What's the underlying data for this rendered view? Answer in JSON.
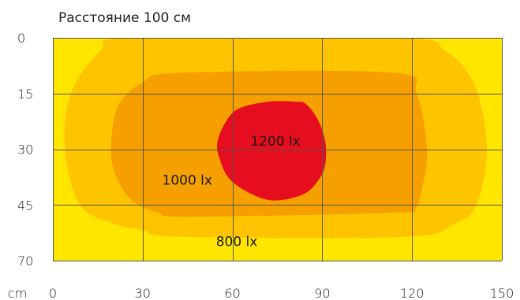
{
  "chart_data": {
    "type": "heatmap",
    "title": "Расстояние  100 см",
    "x_unit_label": "cm",
    "xlim": [
      0,
      150
    ],
    "x_ticks": [
      0,
      30,
      60,
      90,
      120,
      150
    ],
    "y_ticks": [
      0,
      15,
      30,
      45,
      70
    ],
    "y_tick_labels": [
      "0",
      "15",
      "30",
      "45",
      "70"
    ],
    "grid": true,
    "colors": {
      "background": "#ffe600",
      "level_800": "#ffc400",
      "level_1000": "#f5a000",
      "level_1200": "#e60d1e",
      "grid": "#555555"
    },
    "contour_labels": [
      "800 lx",
      "1000 lx",
      "1200 lx"
    ],
    "contours": [
      {
        "level": "800 lx",
        "label": "800 lx",
        "label_at": [
          54.5,
          63.5
        ],
        "points": [
          [
            27,
            0
          ],
          [
            116,
            0
          ],
          [
            131,
            3.4
          ],
          [
            141,
            13
          ],
          [
            145,
            30
          ],
          [
            141.5,
            45
          ],
          [
            134,
            53.5
          ],
          [
            118,
            59.3
          ],
          [
            43,
            59.3
          ],
          [
            30,
            56.3
          ],
          [
            20,
            53.3
          ],
          [
            9,
            45
          ],
          [
            4,
            30
          ],
          [
            6,
            15
          ],
          [
            16,
            3.4
          ]
        ]
      },
      {
        "level": "1000 lx",
        "label": "1000 lx",
        "label_at": [
          36.5,
          39.5
        ],
        "points": [
          [
            43,
            9.4
          ],
          [
            113.5,
            9.4
          ],
          [
            121.5,
            15
          ],
          [
            125,
            30
          ],
          [
            123.5,
            40
          ],
          [
            121,
            46.5
          ],
          [
            114,
            48.5
          ],
          [
            46,
            50.3
          ],
          [
            35,
            48.5
          ],
          [
            26,
            43.5
          ],
          [
            20.5,
            36
          ],
          [
            19.5,
            28
          ],
          [
            22,
            18
          ],
          [
            30,
            12
          ]
        ]
      },
      {
        "level": "1200 lx",
        "label": "1200 lx",
        "label_at": [
          66,
          29
        ],
        "points": [
          [
            81,
            17.2
          ],
          [
            84.5,
            17.8
          ],
          [
            88.5,
            22
          ],
          [
            91,
            28
          ],
          [
            91,
            34
          ],
          [
            89,
            38
          ],
          [
            84,
            42
          ],
          [
            74.5,
            43.8
          ],
          [
            67,
            42.3
          ],
          [
            59,
            38
          ],
          [
            55.5,
            32
          ],
          [
            55,
            28
          ],
          [
            57.5,
            23
          ],
          [
            62,
            19.1
          ],
          [
            72,
            17.2
          ]
        ]
      }
    ]
  }
}
